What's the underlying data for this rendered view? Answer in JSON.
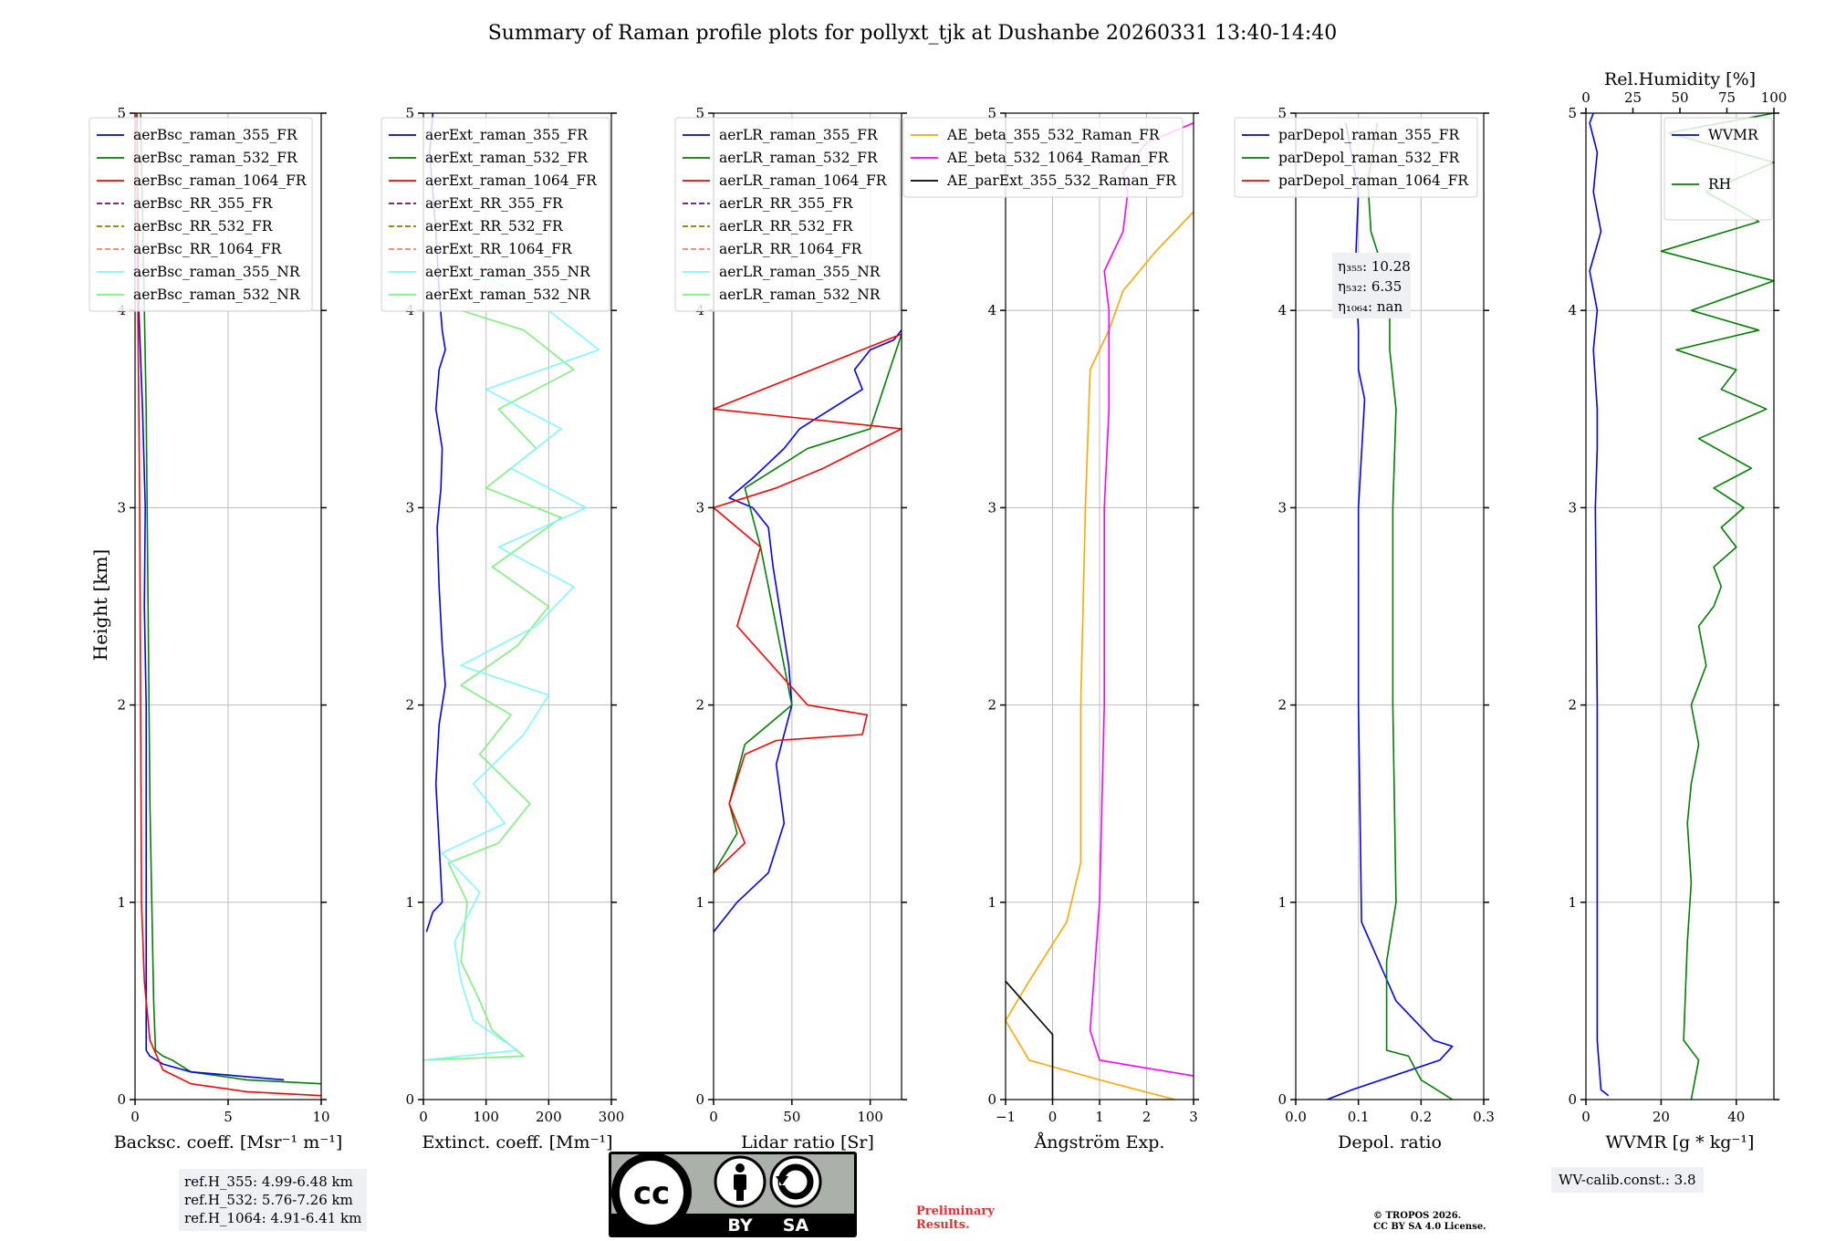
{
  "title": "Summary of Raman profile plots for pollyxt_tjk at Dushanbe 20260331 13:40-14:40",
  "ylabel": "Height [km]",
  "yticks": [
    "0",
    "1",
    "2",
    "3",
    "4",
    "5"
  ],
  "colors": {
    "blue": "#0000ff",
    "green": "#008000",
    "red": "#ff0000",
    "purple": "#800080",
    "olive": "#808000",
    "salmon": "#fa8072",
    "cyan": "#7ff7ff",
    "lightgreen": "#7ef07e",
    "orange": "#ffa500",
    "magenta": "#ff00ff",
    "black": "#000000"
  },
  "panels": {
    "bsc": {
      "xlabel": "Backsc. coeff. [Msr⁻¹ m⁻¹]",
      "xticks": [
        "0",
        "5",
        "10"
      ],
      "legend": [
        "aerBsc_raman_355_FR",
        "aerBsc_raman_532_FR",
        "aerBsc_raman_1064_FR",
        "aerBsc_RR_355_FR",
        "aerBsc_RR_532_FR",
        "aerBsc_RR_1064_FR",
        "aerBsc_raman_355_NR",
        "aerBsc_raman_532_NR"
      ]
    },
    "ext": {
      "xlabel": "Extinct. coeff. [Mm⁻¹]",
      "xticks": [
        "0",
        "100",
        "200",
        "300"
      ],
      "legend": [
        "aerExt_raman_355_FR",
        "aerExt_raman_532_FR",
        "aerExt_raman_1064_FR",
        "aerExt_RR_355_FR",
        "aerExt_RR_532_FR",
        "aerExt_RR_1064_FR",
        "aerExt_raman_355_NR",
        "aerExt_raman_532_NR"
      ]
    },
    "lr": {
      "xlabel": "Lidar ratio [Sr]",
      "xticks": [
        "0",
        "50",
        "100"
      ],
      "legend": [
        "aerLR_raman_355_FR",
        "aerLR_raman_532_FR",
        "aerLR_raman_1064_FR",
        "aerLR_RR_355_FR",
        "aerLR_RR_532_FR",
        "aerLR_RR_1064_FR",
        "aerLR_raman_355_NR",
        "aerLR_raman_532_NR"
      ]
    },
    "ae": {
      "xlabel": "Ångström Exp.",
      "xticks": [
        "−1",
        "0",
        "1",
        "2",
        "3"
      ],
      "legend": [
        "AE_beta_355_532_Raman_FR",
        "AE_beta_532_1064_Raman_FR",
        "AE_parExt_355_532_Raman_FR"
      ]
    },
    "depol": {
      "xlabel": "Depol. ratio",
      "xticks": [
        "0.0",
        "0.1",
        "0.2",
        "0.3"
      ],
      "legend": [
        "parDepol_raman_355_FR",
        "parDepol_raman_532_FR",
        "parDepol_raman_1064_FR"
      ],
      "eta": [
        "η₃₅₅: 10.28",
        "η₅₃₂: 6.35",
        "η₁₀₆₄: nan"
      ]
    },
    "wv": {
      "xlabel": "WVMR [g * kg⁻¹]",
      "xticks": [
        "0",
        "20",
        "40"
      ],
      "top_label": "Rel.Humidity [%]",
      "top_ticks": [
        "0",
        "25",
        "50",
        "75",
        "100"
      ],
      "legend": [
        "WVMR",
        "RH"
      ]
    }
  },
  "chart_data": [
    {
      "type": "line",
      "panel": "bsc",
      "xlim": [
        0,
        10
      ],
      "ylim": [
        0,
        5
      ],
      "series": [
        {
          "name": "aerBsc_raman_532_FR",
          "x": [
            10,
            6,
            3,
            2,
            1.5,
            1.1,
            1.0,
            0.8,
            0.7,
            0.6,
            0.5,
            0.3
          ],
          "y": [
            0.08,
            0.1,
            0.14,
            0.2,
            0.22,
            0.25,
            0.5,
            1.5,
            2.5,
            3.5,
            4.0,
            5.0
          ]
        },
        {
          "name": "aerBsc_raman_355_FR",
          "x": [
            8,
            3,
            1.5,
            0.8,
            0.6,
            0.6,
            0.6,
            0.5,
            0.55,
            0.4,
            0.2,
            0.1
          ],
          "y": [
            0.1,
            0.14,
            0.18,
            0.22,
            0.25,
            1.0,
            2.0,
            2.5,
            3.0,
            3.5,
            4.0,
            5.0
          ]
        },
        {
          "name": "aerBsc_raman_1064_FR",
          "x": [
            10,
            6,
            3,
            1.5,
            0.8,
            0.5,
            0.35,
            0.3,
            0.25,
            0.2,
            0.15,
            0.1
          ],
          "y": [
            0.02,
            0.04,
            0.08,
            0.15,
            0.3,
            0.6,
            1.0,
            2.0,
            3.0,
            3.5,
            4.0,
            5.0
          ]
        }
      ]
    },
    {
      "type": "line",
      "panel": "ext",
      "xlim": [
        0,
        300
      ],
      "ylim": [
        0,
        5
      ],
      "series": [
        {
          "name": "aerExt_raman_355_FR",
          "x": [
            5,
            15,
            30,
            25,
            20,
            25,
            35,
            30,
            25,
            22,
            28,
            30,
            20,
            25,
            35,
            30,
            25,
            20,
            10,
            15
          ],
          "y": [
            0.85,
            0.95,
            1.0,
            1.3,
            1.6,
            1.9,
            2.1,
            2.3,
            2.6,
            2.9,
            3.1,
            3.3,
            3.5,
            3.7,
            3.8,
            3.9,
            4.1,
            4.4,
            4.8,
            5.0
          ]
        },
        {
          "name": "aerExt_raman_532_NR",
          "x": [
            0,
            160,
            110,
            90,
            60,
            70,
            40,
            120,
            170,
            90,
            140,
            60,
            150,
            200,
            110,
            220,
            100,
            180,
            120,
            240,
            160,
            60
          ],
          "y": [
            0.2,
            0.22,
            0.35,
            0.5,
            0.7,
            1.0,
            1.2,
            1.3,
            1.5,
            1.75,
            1.95,
            2.1,
            2.3,
            2.5,
            2.7,
            2.95,
            3.1,
            3.3,
            3.5,
            3.7,
            3.9,
            4.0
          ]
        },
        {
          "name": "aerExt_raman_355_NR",
          "x": [
            0,
            150,
            80,
            60,
            50,
            90,
            30,
            130,
            80,
            160,
            200,
            60,
            180,
            240,
            120,
            260,
            140,
            220,
            100,
            280,
            200,
            80
          ],
          "y": [
            0.2,
            0.25,
            0.4,
            0.6,
            0.8,
            1.05,
            1.25,
            1.4,
            1.6,
            1.85,
            2.05,
            2.2,
            2.4,
            2.6,
            2.8,
            3.0,
            3.2,
            3.4,
            3.6,
            3.8,
            4.0,
            4.2
          ]
        }
      ]
    },
    {
      "type": "line",
      "panel": "lr",
      "xlim": [
        0,
        120
      ],
      "ylim": [
        0,
        5
      ],
      "series": [
        {
          "name": "aerLR_raman_355_FR",
          "x": [
            0,
            15,
            35,
            45,
            40,
            50,
            48,
            42,
            38,
            35,
            25,
            10,
            25,
            45,
            55,
            75,
            95,
            90,
            100,
            115,
            120
          ],
          "y": [
            0.85,
            1.0,
            1.15,
            1.4,
            1.7,
            2.0,
            2.2,
            2.5,
            2.7,
            2.9,
            3.0,
            3.05,
            3.15,
            3.3,
            3.4,
            3.5,
            3.6,
            3.7,
            3.8,
            3.85,
            3.9
          ]
        },
        {
          "name": "aerLR_raman_532_FR",
          "x": [
            0,
            15,
            10,
            20,
            35,
            50,
            30,
            20,
            40,
            60,
            100,
            120
          ],
          "y": [
            1.15,
            1.35,
            1.5,
            1.8,
            1.9,
            2.0,
            2.8,
            3.1,
            3.2,
            3.3,
            3.4,
            3.88
          ]
        },
        {
          "name": "aerLR_raman_1064_FR",
          "x": [
            0,
            20,
            10,
            20,
            40,
            95,
            98,
            60,
            15,
            30,
            0,
            40,
            70,
            120,
            0,
            120
          ],
          "y": [
            1.15,
            1.3,
            1.5,
            1.75,
            1.82,
            1.85,
            1.95,
            2.0,
            2.4,
            2.8,
            3.0,
            3.1,
            3.2,
            3.4,
            3.5,
            3.88
          ]
        }
      ]
    },
    {
      "type": "line",
      "panel": "ae",
      "xlim": [
        -1,
        3
      ],
      "ylim": [
        0,
        5
      ],
      "series": [
        {
          "name": "AE_beta_355_532_Raman_FR",
          "x": [
            2.6,
            1.0,
            -0.5,
            -1,
            -0.5,
            0.3,
            0.6,
            0.6,
            0.7,
            0.8,
            1.2,
            1.5,
            2.2,
            3.0
          ],
          "y": [
            0.0,
            0.1,
            0.2,
            0.4,
            0.6,
            0.9,
            1.2,
            2.0,
            3.0,
            3.7,
            3.9,
            4.1,
            4.3,
            4.5
          ]
        },
        {
          "name": "AE_beta_532_1064_Raman_FR",
          "x": [
            3.0,
            1.0,
            0.8,
            1.0,
            1.1,
            1.1,
            1.2,
            1.2,
            1.1,
            1.5,
            1.6,
            1.5,
            2.0,
            3.0
          ],
          "y": [
            0.12,
            0.2,
            0.35,
            1.0,
            2.0,
            3.0,
            3.5,
            4.0,
            4.2,
            4.4,
            4.6,
            4.7,
            4.85,
            4.95
          ]
        },
        {
          "name": "AE_parExt_355_532_Raman_FR",
          "x": [
            -1,
            0.0,
            0.0
          ],
          "y": [
            0.6,
            0.33,
            0.0
          ]
        }
      ]
    },
    {
      "type": "line",
      "panel": "depol",
      "xlim": [
        0,
        0.3
      ],
      "ylim": [
        0,
        5
      ],
      "series": [
        {
          "name": "parDepol_raman_355_FR",
          "x": [
            0.05,
            0.09,
            0.23,
            0.25,
            0.22,
            0.16,
            0.105,
            0.1,
            0.1,
            0.11,
            0.1,
            0.1,
            0.095,
            0.1,
            0.08
          ],
          "y": [
            0.0,
            0.05,
            0.2,
            0.27,
            0.3,
            0.5,
            0.9,
            2.0,
            3.0,
            3.55,
            3.7,
            3.9,
            4.2,
            4.6,
            4.95
          ]
        },
        {
          "name": "parDepol_raman_532_FR",
          "x": [
            0.25,
            0.2,
            0.18,
            0.145,
            0.145,
            0.16,
            0.155,
            0.155,
            0.16,
            0.15,
            0.15,
            0.14,
            0.12,
            0.115,
            0.13
          ],
          "y": [
            0.0,
            0.1,
            0.22,
            0.25,
            0.7,
            1.0,
            2.0,
            3.0,
            3.5,
            3.8,
            4.0,
            4.2,
            4.4,
            4.65,
            4.95
          ]
        }
      ]
    },
    {
      "type": "line",
      "panel": "wv",
      "xlim": [
        0,
        50
      ],
      "ylim": [
        0,
        5
      ],
      "rh_xlim": [
        0,
        100
      ],
      "series": [
        {
          "name": "WVMR",
          "x": [
            6,
            4,
            3,
            3,
            3,
            2.5,
            3,
            3,
            2,
            3,
            1,
            4,
            2,
            3,
            1,
            2
          ],
          "y": [
            0.02,
            0.05,
            0.3,
            1.0,
            2.0,
            3.0,
            3.3,
            3.5,
            3.8,
            4.0,
            4.2,
            4.4,
            4.6,
            4.8,
            4.95,
            5.0
          ]
        },
        {
          "name": "RH",
          "x": [
            28,
            30,
            26,
            27,
            28,
            27,
            28,
            30,
            28,
            32,
            30,
            34,
            36,
            34,
            40,
            36,
            42,
            34,
            44,
            30,
            48,
            36,
            40,
            24,
            46,
            28,
            54,
            20,
            46,
            32,
            58,
            22,
            50
          ],
          "y": [
            0.0,
            0.2,
            0.3,
            0.8,
            1.1,
            1.4,
            1.6,
            1.8,
            2.0,
            2.2,
            2.4,
            2.5,
            2.6,
            2.7,
            2.8,
            2.9,
            3.0,
            3.1,
            3.2,
            3.35,
            3.5,
            3.6,
            3.7,
            3.8,
            3.9,
            4.0,
            4.15,
            4.3,
            4.45,
            4.6,
            4.75,
            4.9,
            5.0
          ]
        }
      ]
    }
  ],
  "ref_heights": [
    "ref.H_355: 4.99-6.48 km",
    "ref.H_532: 5.76-7.26 km",
    "ref.H_1064: 4.91-6.41 km"
  ],
  "wv_calib": "WV-calib.const.: 3.8",
  "license": {
    "cc_label": "cc",
    "by": "BY",
    "sa": "SA"
  },
  "preliminary": [
    "Preliminary",
    "Results."
  ],
  "copyright": [
    "© TROPOS 2026.",
    "CC BY SA 4.0 License."
  ]
}
